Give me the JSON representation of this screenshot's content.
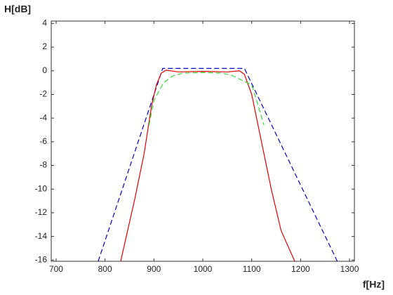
{
  "chart_data": {
    "type": "line",
    "xlabel": "f[Hz]",
    "ylabel": "H[dB]",
    "xlim": [
      690,
      1310
    ],
    "xticks": [
      700,
      800,
      900,
      1000,
      1100,
      1200,
      1300
    ],
    "ylim": [
      -16.1,
      4.2
    ],
    "yticks": [
      4,
      2,
      0,
      -2,
      -4,
      -6,
      -8,
      -10,
      -12,
      -14,
      -16
    ],
    "series": [
      {
        "color": "#0000cc",
        "style": "dashed",
        "x": [
          786,
          918,
          1085,
          1275
        ],
        "values": [
          -16.1,
          0.2,
          0.2,
          -16.1
        ]
      },
      {
        "color": "#e00000",
        "style": "solid",
        "x": [
          832,
          860,
          880,
          895,
          905,
          915,
          925,
          950,
          1000,
          1050,
          1075,
          1085,
          1100,
          1120,
          1140,
          1160,
          1188
        ],
        "values": [
          -16.1,
          -11,
          -7,
          -3,
          -1.2,
          -0.2,
          0.05,
          -0.1,
          -0.05,
          -0.1,
          0,
          -0.3,
          -2,
          -6,
          -10,
          -13.5,
          -16.1
        ]
      },
      {
        "color": "#33dd33",
        "style": "dashed",
        "x": [
          890,
          900,
          920,
          940,
          960,
          1000,
          1040,
          1060,
          1080,
          1100,
          1110,
          1125
        ],
        "values": [
          -4.6,
          -2.5,
          -1,
          -0.4,
          -0.2,
          -0.15,
          -0.2,
          -0.4,
          -0.8,
          -1.2,
          -2.5,
          -4.6
        ]
      }
    ]
  }
}
